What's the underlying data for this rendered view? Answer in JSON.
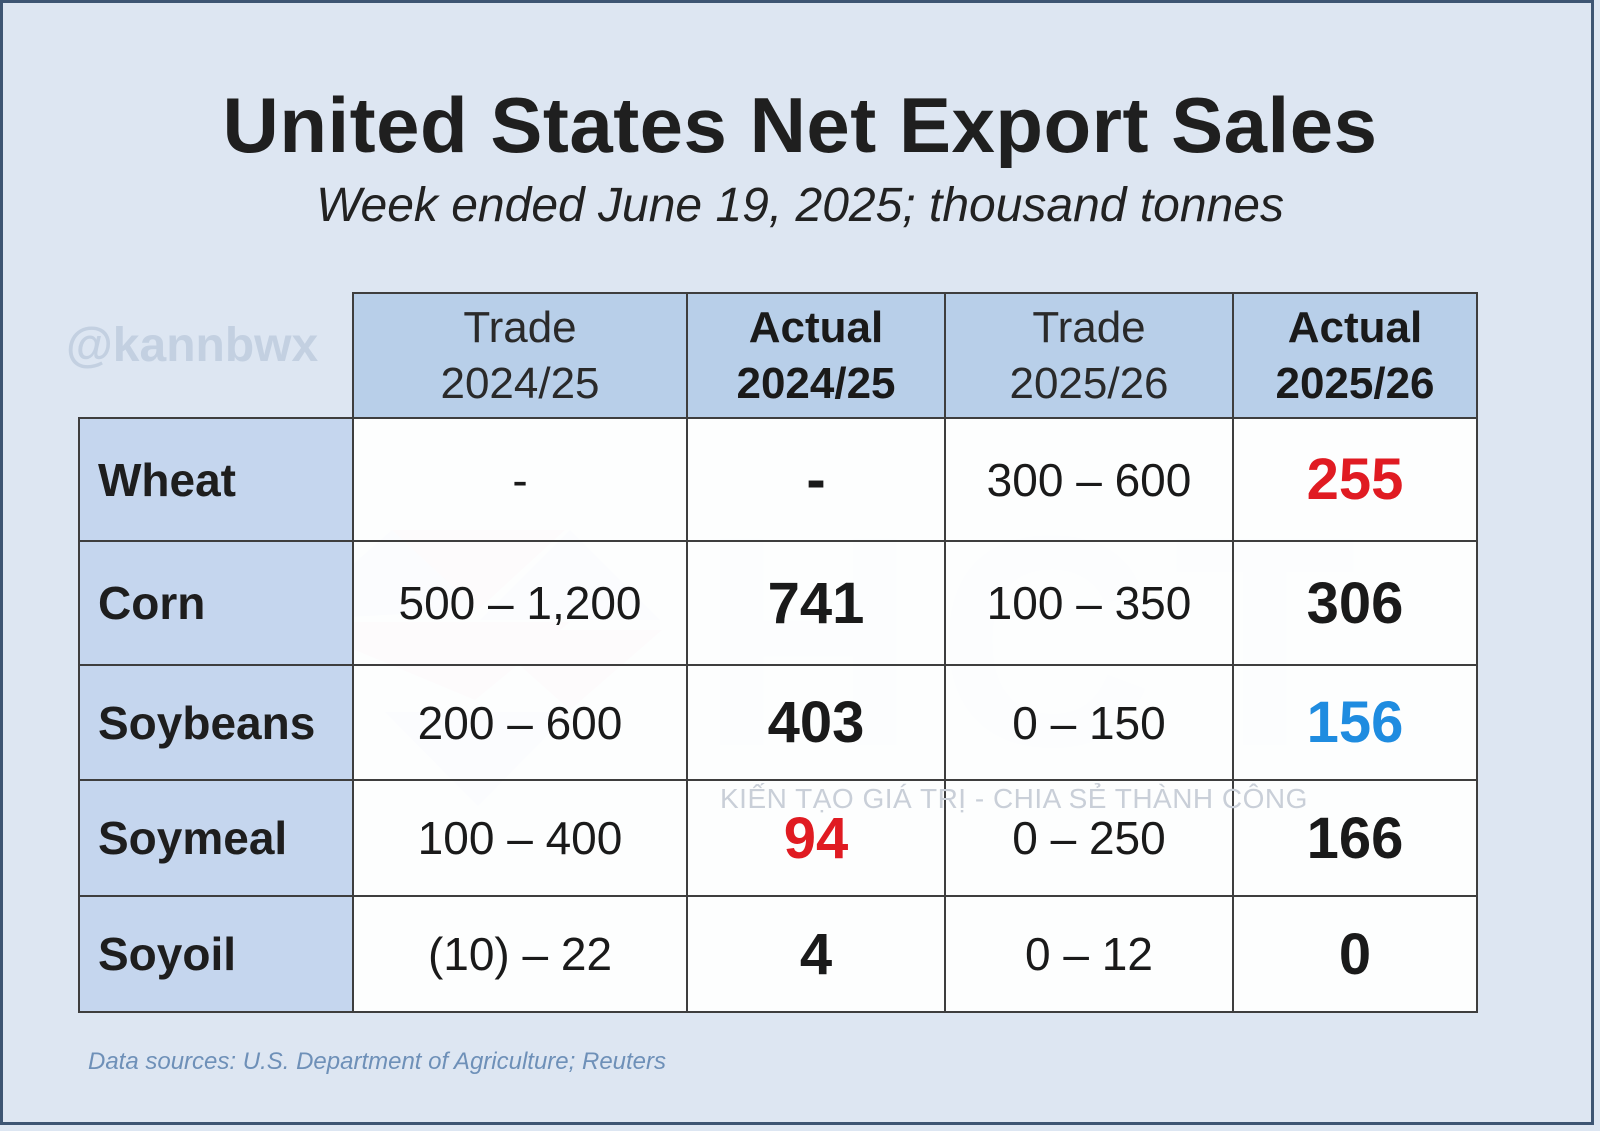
{
  "header": {
    "title": "United States Net Export Sales",
    "subtitle": "Week ended June 19, 2025; thousand tonnes"
  },
  "handle": "@kannbwx",
  "watermark": {
    "logo_text": "HCT",
    "tagline": "KIẾN TẠO GIÁ TRỊ - CHIA SẺ THÀNH CÔNG"
  },
  "chart_data": {
    "type": "table",
    "title": "United States Net Export Sales",
    "subtitle": "Week ended June 19, 2025; thousand tonnes",
    "columns": [
      {
        "line1": "Trade",
        "line2": "2024/25",
        "emphasis": false
      },
      {
        "line1": "Actual",
        "line2": "2024/25",
        "emphasis": true
      },
      {
        "line1": "Trade",
        "line2": "2025/26",
        "emphasis": false
      },
      {
        "line1": "Actual",
        "line2": "2025/26",
        "emphasis": true
      }
    ],
    "rows": [
      {
        "label": "Wheat",
        "cells": [
          "-",
          "-",
          "300 – 600",
          "255"
        ],
        "colors": [
          "",
          "",
          "",
          "#e01b22"
        ]
      },
      {
        "label": "Corn",
        "cells": [
          "500 – 1,200",
          "741",
          "100 – 350",
          "306"
        ],
        "colors": [
          "",
          "",
          "",
          ""
        ]
      },
      {
        "label": "Soybeans",
        "cells": [
          "200 – 600",
          "403",
          "0 – 150",
          "156"
        ],
        "colors": [
          "",
          "",
          "",
          "#1f8ce0"
        ]
      },
      {
        "label": "Soymeal",
        "cells": [
          "100 – 400",
          "94",
          "0 – 250",
          "166"
        ],
        "colors": [
          "",
          "#e01b22",
          "",
          ""
        ]
      },
      {
        "label": "Soyoil",
        "cells": [
          "(10) – 22",
          "4",
          "0 – 12",
          "0"
        ],
        "colors": [
          "",
          "",
          "",
          ""
        ]
      }
    ],
    "sources": "Data sources: U.S. Department of Agriculture; Reuters"
  },
  "colors": {
    "background": "#dde6f2",
    "header_fill": "#b8cfe9",
    "row_label_fill": "#c5d6ee",
    "red": "#e01b22",
    "blue": "#1f8ce0",
    "source_text": "#6e90b8"
  }
}
